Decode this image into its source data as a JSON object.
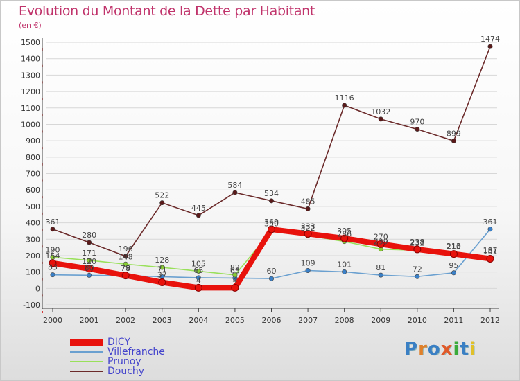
{
  "header": {
    "title": "Evolution du Montant de la Dette par Habitant",
    "subtitle": "(en €)"
  },
  "logo": {
    "text": "Proxiti",
    "letter_colors": [
      "#3a7fc4",
      "#e0802a",
      "#3a7fc4",
      "#e05a2a",
      "#3aaa3a",
      "#3a7fc4",
      "#e0c02a"
    ]
  },
  "colors": {
    "title": "#c0336b",
    "axis_text": "#333333",
    "legend_text": "#4444cc",
    "grid": "#d7d7d7",
    "axis_tick_red": "#cc0000"
  },
  "chart_data": {
    "type": "line",
    "title": "Evolution du Montant de la Dette par Habitant",
    "subtitle": "(en €)",
    "x": [
      "2000",
      "2001",
      "2002",
      "2003",
      "2004",
      "2005",
      "2006",
      "2007",
      "2008",
      "2009",
      "2010",
      "2011",
      "2012"
    ],
    "ylim": [
      -100,
      1500
    ],
    "yticks": [
      -100,
      0,
      100,
      200,
      300,
      400,
      500,
      600,
      700,
      800,
      900,
      1000,
      1100,
      1200,
      1300,
      1400,
      1500
    ],
    "grid": "horizontal",
    "legend_position": "bottom-left",
    "series": [
      {
        "name": "DICY",
        "color": "#e8120c",
        "marker": "#e8120c",
        "style": "thick",
        "values": [
          154,
          120,
          79,
          37,
          4,
          4,
          360,
          333,
          305,
          270,
          238,
          210,
          181
        ]
      },
      {
        "name": "Villefranche",
        "color": "#6aa0d0",
        "marker": "#3a80c8",
        "style": "thin",
        "values": [
          83,
          80,
          78,
          71,
          65,
          63,
          60,
          109,
          101,
          81,
          72,
          95,
          361
        ]
      },
      {
        "name": "Prunoy",
        "color": "#99e05a",
        "marker": "#88cc33",
        "style": "thin",
        "values": [
          190,
          171,
          148,
          128,
          105,
          82,
          350,
          322,
          286,
          239,
          232,
          213,
          187
        ]
      },
      {
        "name": "Douchy",
        "color": "#6b2a2a",
        "marker": "#5a1a1a",
        "style": "thin",
        "values": [
          361,
          280,
          196,
          522,
          445,
          584,
          534,
          485,
          1116,
          1032,
          970,
          899,
          1474
        ]
      }
    ]
  }
}
